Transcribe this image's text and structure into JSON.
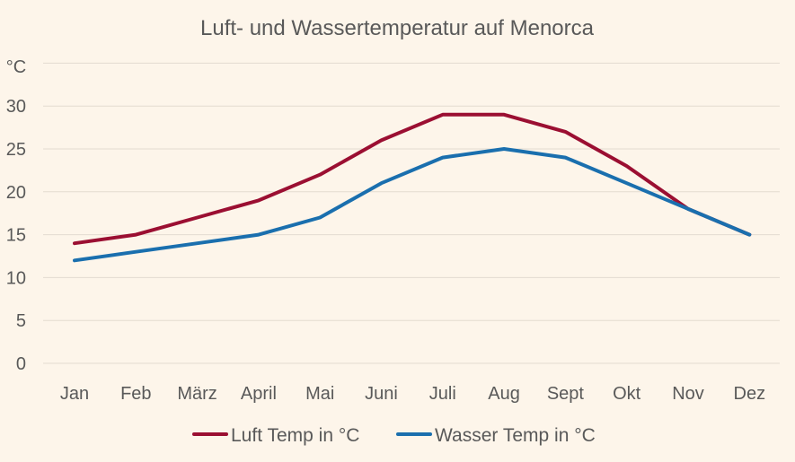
{
  "chart_data": {
    "type": "line",
    "title": "Luft- und Wassertemperatur auf Menorca",
    "ylabel": "°C",
    "xlabel": "",
    "categories": [
      "Jan",
      "Feb",
      "März",
      "April",
      "Mai",
      "Juni",
      "Juli",
      "Aug",
      "Sept",
      "Okt",
      "Nov",
      "Dez"
    ],
    "yticks": [
      "0",
      "5",
      "10",
      "15",
      "20",
      "25",
      "30"
    ],
    "ylim": [
      0,
      35
    ],
    "grid": true,
    "legend_position": "bottom",
    "series": [
      {
        "name": "Luft Temp in °C",
        "color": "#9b0f32",
        "values": [
          14,
          15,
          17,
          19,
          22,
          26,
          29,
          29,
          27,
          23,
          18,
          15
        ]
      },
      {
        "name": "Wasser Temp in °C",
        "color": "#1a6fae",
        "values": [
          12,
          13,
          14,
          15,
          17,
          21,
          24,
          25,
          24,
          21,
          18,
          15
        ]
      }
    ]
  }
}
